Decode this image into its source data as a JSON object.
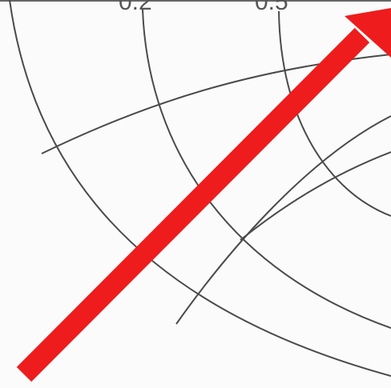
{
  "diagram": {
    "kind": "smith-chart-crop",
    "tick_labels": [
      "0.2",
      "0.5"
    ],
    "colors": {
      "arrow": "#ee1c1c",
      "grid": "#4a4a4a",
      "background": "#fbfbfb"
    }
  }
}
